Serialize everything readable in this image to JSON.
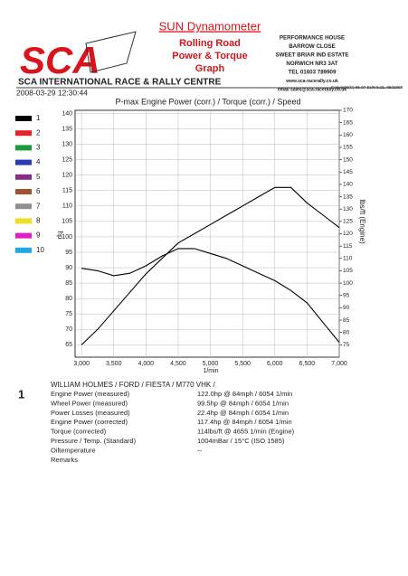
{
  "header": {
    "logo": "SCA",
    "title": "SUN Dynamometer",
    "subtitle_lines": [
      "Rolling Road",
      "Power & Torque",
      "Graph"
    ],
    "address": [
      "PERFORMANCE HOUSE",
      "BARROW CLOSE",
      "SWEET BRIAR IND ESTATE",
      "NORWICH NR3 3AT",
      "TEL 01603 789909",
      "www.sca-racerally.co.uk",
      "email sales@sca-racerally.co.uk"
    ],
    "company": "SCA INTERNATIONAL RACE & RALLY CENTRE",
    "date": "2008-03-29 12:30:44",
    "copyright": "Copyright(C) 96-07 SUN 5.21, 05/10/07"
  },
  "legend": [
    {
      "label": "1",
      "color": "#000000"
    },
    {
      "label": "2",
      "color": "#e8202a"
    },
    {
      "label": "3",
      "color": "#1a9a3a"
    },
    {
      "label": "4",
      "color": "#2a3ab0"
    },
    {
      "label": "5",
      "color": "#8a2a8a"
    },
    {
      "label": "6",
      "color": "#a0522d"
    },
    {
      "label": "7",
      "color": "#909090"
    },
    {
      "label": "8",
      "color": "#f0e020"
    },
    {
      "label": "9",
      "color": "#e020c0"
    },
    {
      "label": "10",
      "color": "#20a8e0"
    }
  ],
  "chart_data": {
    "type": "line",
    "title": "P-max Engine Power (corr.) / Torque (corr.) / Speed",
    "y_label": "hp",
    "y2_label": "lbs/ft (Engine)",
    "x_label": "1/min",
    "x": [
      3000,
      3250,
      3500,
      3750,
      4000,
      4250,
      4500,
      4750,
      5000,
      5250,
      5500,
      5750,
      6000,
      6250,
      6500,
      6750,
      7000
    ],
    "series": [
      {
        "name": "Engine Power (corr.)",
        "color": "#000000",
        "axis": "y",
        "values": [
          65,
          70,
          76,
          82,
          88,
          93,
          98,
          101,
          104,
          107,
          110,
          113,
          116,
          116,
          111,
          107,
          103
        ]
      },
      {
        "name": "Torque (corr.)",
        "color": "#000000",
        "axis": "y2",
        "values": [
          106,
          105,
          103,
          104,
          107,
          111,
          114,
          114,
          112,
          110,
          107,
          104,
          101,
          97,
          92,
          84,
          76
        ]
      }
    ],
    "xlim": [
      2900,
      7000
    ],
    "xticks": [
      {
        "value": 3000,
        "label": "3,000"
      },
      {
        "value": 3500,
        "label": "3,500"
      },
      {
        "value": 4000,
        "label": "4,000"
      },
      {
        "value": 4500,
        "label": "4,500"
      },
      {
        "value": 5000,
        "label": "5,000"
      },
      {
        "value": 5500,
        "label": "5,500"
      },
      {
        "value": 6000,
        "label": "6,000"
      },
      {
        "value": 6500,
        "label": "6,500"
      },
      {
        "value": 7000,
        "label": "7,000"
      }
    ],
    "ylim": [
      61,
      141
    ],
    "yticks": [
      65,
      70,
      75,
      80,
      85,
      90,
      95,
      100,
      105,
      110,
      115,
      120,
      125,
      130,
      135,
      140
    ],
    "y2lim": [
      70,
      170
    ],
    "y2ticks": [
      75,
      80,
      85,
      90,
      95,
      100,
      105,
      110,
      115,
      120,
      125,
      130,
      135,
      140,
      145,
      150,
      155,
      160,
      165,
      170
    ],
    "grid": true
  },
  "results": {
    "run": "1",
    "vehicle": "WILLIAM HOLMES / FORD / FIESTA / M770 VHK /",
    "rows": [
      [
        "Engine Power (measured)",
        "122.0hp @ 84mph / 6054 1/min"
      ],
      [
        "Wheel Power (measured)",
        "99.5hp @ 84mph / 6054 1/min"
      ],
      [
        "Power Losses (measured)",
        "22.4hp @ 84mph / 6054 1/min"
      ],
      [
        "Engine Power (corrected)",
        "117.4hp @ 84mph / 6054 1/min"
      ],
      [
        "Torque (corrected)",
        "114lbs/ft @ 4655 1/min (Engine)"
      ],
      [
        "Pressure / Temp. (Standard)",
        "1004mBar / 15°C  (ISO 1585)"
      ],
      [
        "Oiltemperature",
        "--"
      ],
      [
        "Remarks"
      ]
    ]
  }
}
